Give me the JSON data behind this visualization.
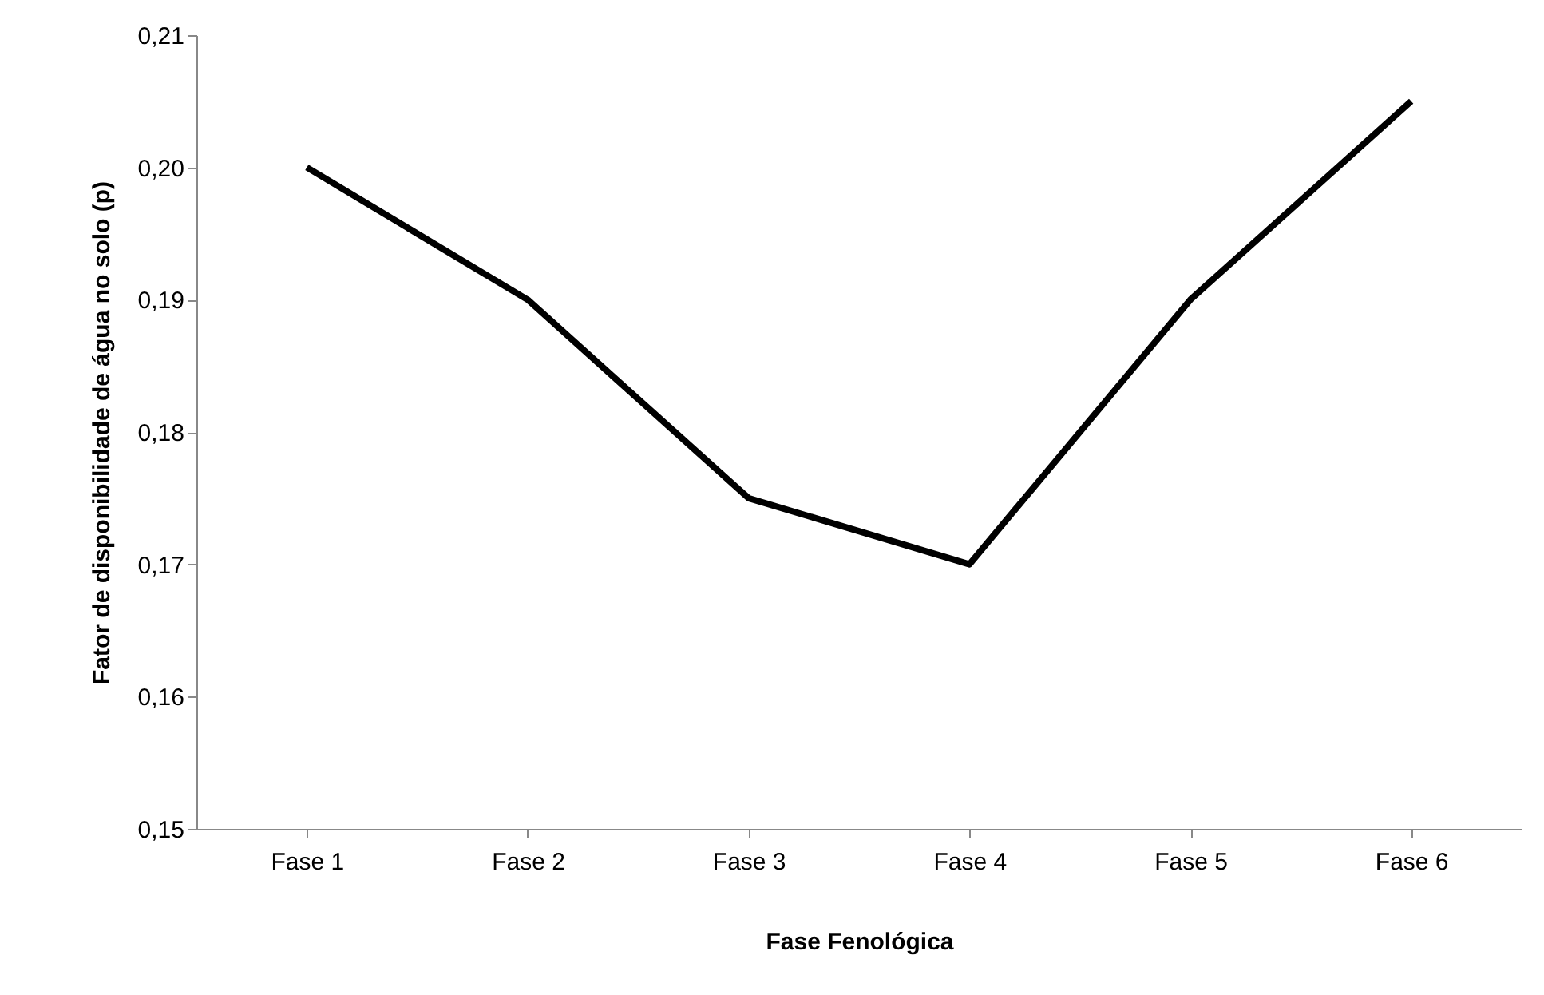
{
  "chart_data": {
    "type": "line",
    "xlabel": "Fase Fenológica",
    "ylabel": "Fator de disponibilidade  de água no solo (p)",
    "categories": [
      "Fase 1",
      "Fase 2",
      "Fase 3",
      "Fase 4",
      "Fase 5",
      "Fase 6"
    ],
    "series": [
      {
        "color": "#000000",
        "values": [
          0.2,
          0.19,
          0.175,
          0.17,
          0.19,
          0.205
        ]
      }
    ],
    "ylim": [
      0.15,
      0.21
    ],
    "yticks": [
      {
        "value": 0.15,
        "label": "0,15"
      },
      {
        "value": 0.16,
        "label": "0,16"
      },
      {
        "value": 0.17,
        "label": "0,17"
      },
      {
        "value": 0.18,
        "label": "0,18"
      },
      {
        "value": 0.19,
        "label": "0,19"
      },
      {
        "value": 0.2,
        "label": "0,20"
      },
      {
        "value": 0.21,
        "label": "0,21"
      }
    ],
    "grid": false,
    "legend": false,
    "marker": "none",
    "line_style": "solid"
  }
}
